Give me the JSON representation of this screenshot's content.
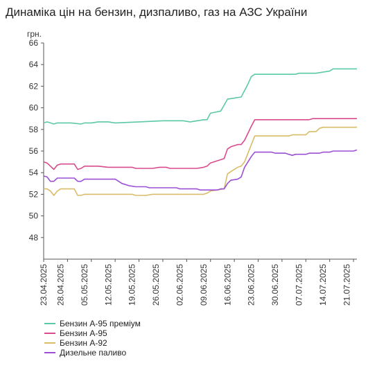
{
  "title": "Динаміка цін на бензин, дизпаливо, газ на АЗС України",
  "chart_data": {
    "type": "line",
    "ylabel": "грн.",
    "ylim": [
      46,
      66
    ],
    "yticks": [
      48,
      50,
      52,
      54,
      56,
      58,
      60,
      62,
      64,
      66
    ],
    "x_start": "2025-04-23",
    "x_end": "2025-07-24",
    "xtick_labels": [
      "23.04.2025",
      "28.04.2025",
      "05.05.2025",
      "12.05.2025",
      "19.05.2025",
      "26.05.2025",
      "02.06.2025",
      "09.06.2025",
      "16.06.2025",
      "23.06.2025",
      "30.06.2025",
      "07.07.2025",
      "14.07.2025",
      "21.07.2025"
    ],
    "xtick_dates": [
      "2025-04-23",
      "2025-04-28",
      "2025-05-05",
      "2025-05-12",
      "2025-05-19",
      "2025-05-26",
      "2025-06-02",
      "2025-06-09",
      "2025-06-16",
      "2025-06-23",
      "2025-06-30",
      "2025-07-07",
      "2025-07-14",
      "2025-07-21"
    ],
    "grid": false,
    "legend_placement": "bottom-left",
    "series": [
      {
        "name": "Бензин А-95 преміум",
        "color": "#5bc8a8",
        "points": [
          [
            "2025-04-23",
            58.6
          ],
          [
            "2025-04-24",
            58.7
          ],
          [
            "2025-04-25",
            58.6
          ],
          [
            "2025-04-26",
            58.5
          ],
          [
            "2025-04-27",
            58.6
          ],
          [
            "2025-05-01",
            58.6
          ],
          [
            "2025-05-04",
            58.5
          ],
          [
            "2025-05-05",
            58.6
          ],
          [
            "2025-05-07",
            58.6
          ],
          [
            "2025-05-09",
            58.7
          ],
          [
            "2025-05-12",
            58.7
          ],
          [
            "2025-05-14",
            58.6
          ],
          [
            "2025-05-21",
            58.7
          ],
          [
            "2025-05-28",
            58.8
          ],
          [
            "2025-06-03",
            58.8
          ],
          [
            "2025-06-05",
            58.7
          ],
          [
            "2025-06-09",
            58.9
          ],
          [
            "2025-06-10",
            58.9
          ],
          [
            "2025-06-11",
            59.5
          ],
          [
            "2025-06-14",
            59.7
          ],
          [
            "2025-06-16",
            60.8
          ],
          [
            "2025-06-18",
            60.9
          ],
          [
            "2025-06-20",
            61.0
          ],
          [
            "2025-06-22",
            62.2
          ],
          [
            "2025-06-23",
            62.9
          ],
          [
            "2025-06-24",
            63.1
          ],
          [
            "2025-06-28",
            63.1
          ],
          [
            "2025-07-06",
            63.1
          ],
          [
            "2025-07-07",
            63.2
          ],
          [
            "2025-07-12",
            63.2
          ],
          [
            "2025-07-14",
            63.3
          ],
          [
            "2025-07-16",
            63.4
          ],
          [
            "2025-07-17",
            63.6
          ],
          [
            "2025-07-24",
            63.6
          ]
        ]
      },
      {
        "name": "Бензин А-95",
        "color": "#d94a8c",
        "points": [
          [
            "2025-04-23",
            55.0
          ],
          [
            "2025-04-24",
            54.9
          ],
          [
            "2025-04-25",
            54.6
          ],
          [
            "2025-04-26",
            54.3
          ],
          [
            "2025-04-27",
            54.7
          ],
          [
            "2025-04-28",
            54.8
          ],
          [
            "2025-05-02",
            54.8
          ],
          [
            "2025-05-03",
            54.3
          ],
          [
            "2025-05-04",
            54.4
          ],
          [
            "2025-05-05",
            54.6
          ],
          [
            "2025-05-07",
            54.6
          ],
          [
            "2025-05-09",
            54.6
          ],
          [
            "2025-05-12",
            54.5
          ],
          [
            "2025-05-19",
            54.5
          ],
          [
            "2025-05-20",
            54.4
          ],
          [
            "2025-05-25",
            54.4
          ],
          [
            "2025-05-27",
            54.5
          ],
          [
            "2025-05-29",
            54.5
          ],
          [
            "2025-05-30",
            54.4
          ],
          [
            "2025-06-07",
            54.4
          ],
          [
            "2025-06-09",
            54.5
          ],
          [
            "2025-06-10",
            54.6
          ],
          [
            "2025-06-11",
            54.9
          ],
          [
            "2025-06-13",
            55.1
          ],
          [
            "2025-06-15",
            55.3
          ],
          [
            "2025-06-16",
            56.2
          ],
          [
            "2025-06-17",
            56.4
          ],
          [
            "2025-06-19",
            56.6
          ],
          [
            "2025-06-20",
            56.6
          ],
          [
            "2025-06-21",
            57.0
          ],
          [
            "2025-06-23",
            58.3
          ],
          [
            "2025-06-24",
            58.9
          ],
          [
            "2025-07-10",
            58.9
          ],
          [
            "2025-07-11",
            59.0
          ],
          [
            "2025-07-24",
            59.0
          ]
        ]
      },
      {
        "name": "Бензин А-92",
        "color": "#d9bc68",
        "points": [
          [
            "2025-04-23",
            52.5
          ],
          [
            "2025-04-24",
            52.5
          ],
          [
            "2025-04-25",
            52.3
          ],
          [
            "2025-04-26",
            51.9
          ],
          [
            "2025-04-27",
            52.3
          ],
          [
            "2025-04-28",
            52.5
          ],
          [
            "2025-05-02",
            52.5
          ],
          [
            "2025-05-03",
            51.9
          ],
          [
            "2025-05-04",
            51.9
          ],
          [
            "2025-05-05",
            52.0
          ],
          [
            "2025-05-19",
            52.0
          ],
          [
            "2025-05-20",
            51.9
          ],
          [
            "2025-05-23",
            51.9
          ],
          [
            "2025-05-25",
            52.0
          ],
          [
            "2025-06-09",
            52.0
          ],
          [
            "2025-06-10",
            52.1
          ],
          [
            "2025-06-11",
            52.3
          ],
          [
            "2025-06-13",
            52.4
          ],
          [
            "2025-06-15",
            52.5
          ],
          [
            "2025-06-16",
            53.9
          ],
          [
            "2025-06-17",
            54.1
          ],
          [
            "2025-06-19",
            54.5
          ],
          [
            "2025-06-20",
            54.6
          ],
          [
            "2025-06-21",
            55.0
          ],
          [
            "2025-06-23",
            56.6
          ],
          [
            "2025-06-24",
            57.4
          ],
          [
            "2025-07-04",
            57.4
          ],
          [
            "2025-07-05",
            57.5
          ],
          [
            "2025-07-09",
            57.5
          ],
          [
            "2025-07-10",
            57.8
          ],
          [
            "2025-07-12",
            57.8
          ],
          [
            "2025-07-13",
            58.1
          ],
          [
            "2025-07-14",
            58.2
          ],
          [
            "2025-07-24",
            58.2
          ]
        ]
      },
      {
        "name": "Дизельне паливо",
        "color": "#9a4fd6",
        "points": [
          [
            "2025-04-23",
            53.7
          ],
          [
            "2025-04-24",
            53.6
          ],
          [
            "2025-04-25",
            53.2
          ],
          [
            "2025-04-26",
            53.2
          ],
          [
            "2025-04-27",
            53.5
          ],
          [
            "2025-04-28",
            53.5
          ],
          [
            "2025-05-02",
            53.5
          ],
          [
            "2025-05-03",
            53.2
          ],
          [
            "2025-05-04",
            53.2
          ],
          [
            "2025-05-05",
            53.4
          ],
          [
            "2025-05-14",
            53.4
          ],
          [
            "2025-05-15",
            53.2
          ],
          [
            "2025-05-16",
            53.0
          ],
          [
            "2025-05-18",
            52.8
          ],
          [
            "2025-05-20",
            52.7
          ],
          [
            "2025-05-23",
            52.7
          ],
          [
            "2025-05-24",
            52.6
          ],
          [
            "2025-06-01",
            52.6
          ],
          [
            "2025-06-02",
            52.5
          ],
          [
            "2025-06-07",
            52.5
          ],
          [
            "2025-06-08",
            52.4
          ],
          [
            "2025-06-13",
            52.4
          ],
          [
            "2025-06-14",
            52.5
          ],
          [
            "2025-06-15",
            52.5
          ],
          [
            "2025-06-16",
            53.0
          ],
          [
            "2025-06-17",
            53.3
          ],
          [
            "2025-06-19",
            53.4
          ],
          [
            "2025-06-20",
            53.6
          ],
          [
            "2025-06-21",
            54.5
          ],
          [
            "2025-06-23",
            55.5
          ],
          [
            "2025-06-24",
            55.9
          ],
          [
            "2025-06-29",
            55.9
          ],
          [
            "2025-06-30",
            55.8
          ],
          [
            "2025-07-03",
            55.8
          ],
          [
            "2025-07-04",
            55.7
          ],
          [
            "2025-07-05",
            55.6
          ],
          [
            "2025-07-06",
            55.7
          ],
          [
            "2025-07-09",
            55.7
          ],
          [
            "2025-07-10",
            55.8
          ],
          [
            "2025-07-13",
            55.8
          ],
          [
            "2025-07-14",
            55.9
          ],
          [
            "2025-07-16",
            55.9
          ],
          [
            "2025-07-17",
            56.0
          ],
          [
            "2025-07-23",
            56.0
          ],
          [
            "2025-07-24",
            56.1
          ]
        ]
      }
    ]
  }
}
